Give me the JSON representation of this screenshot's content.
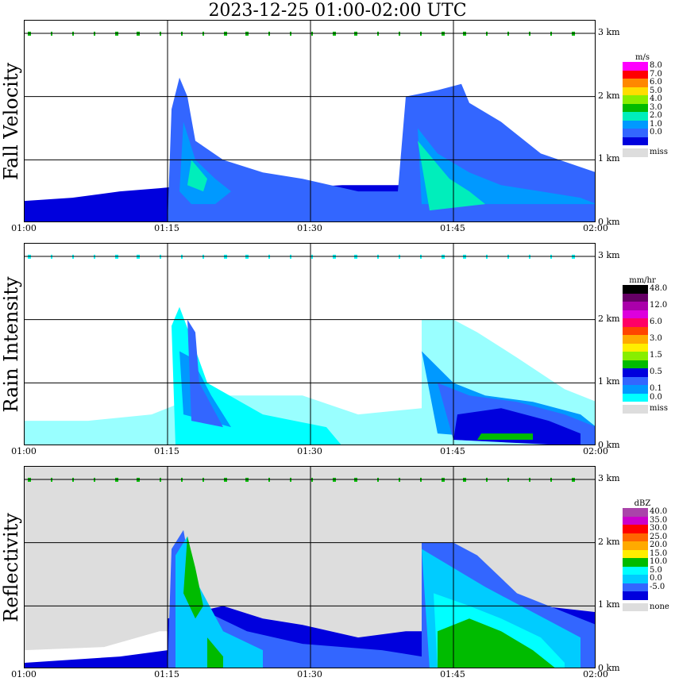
{
  "title": "2023-12-25   01:00-02:00 UTC",
  "chart_data": [
    {
      "type": "heatmap",
      "title": "Fall Velocity",
      "x_ticks": [
        "01:00",
        "01:15",
        "01:30",
        "01:45",
        "02:00"
      ],
      "y_ticks": [
        "0 km",
        "1 km",
        "2 km",
        "3 km"
      ],
      "ylim": [
        0,
        3.2
      ],
      "legend_unit": "m/s",
      "legend": [
        {
          "label": "8.0",
          "color": "#ff00ff"
        },
        {
          "label": "7.0",
          "color": "#ff0000"
        },
        {
          "label": "6.0",
          "color": "#ff8800"
        },
        {
          "label": "5.0",
          "color": "#ffdd00"
        },
        {
          "label": "4.0",
          "color": "#88ee00"
        },
        {
          "label": "3.0",
          "color": "#00bb00"
        },
        {
          "label": "2.0",
          "color": "#00eebb"
        },
        {
          "label": "1.0",
          "color": "#0099ff"
        },
        {
          "label": "0.0",
          "color": "#3366ff"
        },
        {
          "label": "",
          "color": "#0000dd"
        },
        {
          "label": "miss",
          "color": "#dddddd"
        }
      ],
      "base_color": "#ffffff",
      "layers": [
        {
          "color": "#0000dd",
          "pts": [
            [
              0,
              0
            ],
            [
              0,
              0.35
            ],
            [
              60,
              0.4
            ],
            [
              120,
              0.5
            ],
            [
              170,
              0.55
            ],
            [
              210,
              0.6
            ],
            [
              260,
              0.5
            ],
            [
              330,
              0.55
            ],
            [
              400,
              0.6
            ],
            [
              460,
              0.6
            ],
            [
              500,
              0.6
            ],
            [
              540,
              0.5
            ],
            [
              590,
              0.4
            ],
            [
              650,
              0.3
            ],
            [
              720,
              0.3
            ],
            [
              720,
              0
            ]
          ]
        },
        {
          "color": "#3366ff",
          "pts": [
            [
              180,
              0
            ],
            [
              185,
              1.8
            ],
            [
              195,
              2.3
            ],
            [
              205,
              2.0
            ],
            [
              215,
              1.3
            ],
            [
              250,
              1.0
            ],
            [
              300,
              0.8
            ],
            [
              350,
              0.7
            ],
            [
              420,
              0.5
            ],
            [
              470,
              0.5
            ],
            [
              480,
              2.0
            ],
            [
              520,
              2.1
            ],
            [
              550,
              2.2
            ],
            [
              560,
              1.9
            ],
            [
              600,
              1.6
            ],
            [
              650,
              1.1
            ],
            [
              720,
              0.8
            ],
            [
              720,
              0
            ]
          ]
        },
        {
          "color": "#0099ff",
          "pts": [
            [
              195,
              0.5
            ],
            [
              200,
              1.6
            ],
            [
              215,
              1.0
            ],
            [
              240,
              0.7
            ],
            [
              260,
              0.5
            ],
            [
              240,
              0.3
            ],
            [
              210,
              0.3
            ]
          ]
        },
        {
          "color": "#0099ff",
          "pts": [
            [
              500,
              0.3
            ],
            [
              495,
              1.5
            ],
            [
              520,
              1.1
            ],
            [
              560,
              0.8
            ],
            [
              600,
              0.6
            ],
            [
              650,
              0.5
            ],
            [
              700,
              0.4
            ],
            [
              720,
              0.3
            ]
          ]
        },
        {
          "color": "#00eebb",
          "pts": [
            [
              510,
              0.2
            ],
            [
              495,
              1.3
            ],
            [
              515,
              1.0
            ],
            [
              535,
              0.7
            ],
            [
              560,
              0.5
            ],
            [
              580,
              0.3
            ]
          ]
        },
        {
          "color": "#00eebb",
          "pts": [
            [
              205,
              0.6
            ],
            [
              210,
              1.0
            ],
            [
              230,
              0.7
            ],
            [
              225,
              0.5
            ]
          ]
        }
      ],
      "dots_color": "#00bb00"
    },
    {
      "type": "heatmap",
      "title": "Rain Intensity",
      "x_ticks": [
        "01:00",
        "01:15",
        "01:30",
        "01:45",
        "02:00"
      ],
      "y_ticks": [
        "0 km",
        "1 km",
        "2 km",
        "3 km"
      ],
      "ylim": [
        0,
        3.2
      ],
      "legend_unit": "mm/hr",
      "legend": [
        {
          "label": "48.0",
          "color": "#000000"
        },
        {
          "label": "",
          "color": "#660066"
        },
        {
          "label": "12.0",
          "color": "#aa00aa"
        },
        {
          "label": "",
          "color": "#dd00dd"
        },
        {
          "label": "6.0",
          "color": "#ff0066"
        },
        {
          "label": "",
          "color": "#ff4400"
        },
        {
          "label": "3.0",
          "color": "#ffaa00"
        },
        {
          "label": "",
          "color": "#ffee00"
        },
        {
          "label": "1.5",
          "color": "#88ee00"
        },
        {
          "label": "",
          "color": "#00bb00"
        },
        {
          "label": "0.5",
          "color": "#0000dd"
        },
        {
          "label": "",
          "color": "#3366ff"
        },
        {
          "label": "0.1",
          "color": "#0099ff"
        },
        {
          "label": "0.0",
          "color": "#00ffff"
        },
        {
          "label": "miss",
          "color": "#dddddd"
        }
      ],
      "base_color": "#ffffff",
      "layers": [
        {
          "color": "#99ffff",
          "pts": [
            [
              0,
              0
            ],
            [
              0,
              0.4
            ],
            [
              80,
              0.4
            ],
            [
              160,
              0.5
            ],
            [
              220,
              0.8
            ],
            [
              280,
              0.8
            ],
            [
              350,
              0.8
            ],
            [
              420,
              0.5
            ],
            [
              500,
              0.6
            ],
            [
              500,
              2.0
            ],
            [
              540,
              2.0
            ],
            [
              570,
              1.8
            ],
            [
              620,
              1.4
            ],
            [
              680,
              0.9
            ],
            [
              720,
              0.7
            ],
            [
              720,
              0
            ]
          ]
        },
        {
          "color": "#00ffff",
          "pts": [
            [
              190,
              0
            ],
            [
              185,
              1.9
            ],
            [
              195,
              2.2
            ],
            [
              210,
              1.7
            ],
            [
              230,
              1.0
            ],
            [
              300,
              0.5
            ],
            [
              380,
              0.3
            ],
            [
              400,
              0
            ]
          ]
        },
        {
          "color": "#0099ff",
          "pts": [
            [
              200,
              0.5
            ],
            [
              195,
              1.5
            ],
            [
              210,
              1.4
            ],
            [
              235,
              0.8
            ],
            [
              260,
              0.3
            ]
          ]
        },
        {
          "color": "#0099ff",
          "pts": [
            [
              520,
              0.2
            ],
            [
              500,
              1.5
            ],
            [
              540,
              1.0
            ],
            [
              580,
              0.8
            ],
            [
              640,
              0.7
            ],
            [
              700,
              0.5
            ],
            [
              720,
              0.3
            ],
            [
              720,
              0
            ]
          ]
        },
        {
          "color": "#3366ff",
          "pts": [
            [
              210,
              0.4
            ],
            [
              205,
              2.0
            ],
            [
              215,
              1.8
            ],
            [
              220,
              1.0
            ],
            [
              250,
              0.3
            ]
          ]
        },
        {
          "color": "#3366ff",
          "pts": [
            [
              540,
              0.1
            ],
            [
              520,
              1.0
            ],
            [
              560,
              0.8
            ],
            [
              620,
              0.7
            ],
            [
              680,
              0.5
            ],
            [
              720,
              0.3
            ],
            [
              720,
              0
            ]
          ]
        },
        {
          "color": "#0000dd",
          "pts": [
            [
              540,
              0.1
            ],
            [
              545,
              0.5
            ],
            [
              600,
              0.6
            ],
            [
              660,
              0.4
            ],
            [
              700,
              0.2
            ],
            [
              700,
              0
            ]
          ]
        },
        {
          "color": "#00bb00",
          "pts": [
            [
              570,
              0.1
            ],
            [
              575,
              0.2
            ],
            [
              640,
              0.2
            ],
            [
              640,
              0.1
            ]
          ]
        }
      ],
      "dots_color": "#00ffff"
    },
    {
      "type": "heatmap",
      "title": "Reflectivity",
      "x_ticks": [
        "01:00",
        "01:15",
        "01:30",
        "01:45",
        "02:00"
      ],
      "y_ticks": [
        "0 km",
        "1 km",
        "2 km",
        "3 km"
      ],
      "ylim": [
        0,
        3.2
      ],
      "legend_unit": "dBZ",
      "legend": [
        {
          "label": "40.0",
          "color": "#aa44aa"
        },
        {
          "label": "35.0",
          "color": "#cc00cc"
        },
        {
          "label": "30.0",
          "color": "#ff0000"
        },
        {
          "label": "25.0",
          "color": "#ff6600"
        },
        {
          "label": "20.0",
          "color": "#ffaa00"
        },
        {
          "label": "15.0",
          "color": "#ffee00"
        },
        {
          "label": "10.0",
          "color": "#00bb00"
        },
        {
          "label": "5.0",
          "color": "#00ffff"
        },
        {
          "label": "0.0",
          "color": "#00ccff"
        },
        {
          "label": "-5.0",
          "color": "#3366ff"
        },
        {
          "label": "",
          "color": "#0000dd"
        },
        {
          "label": "none",
          "color": "#dddddd"
        }
      ],
      "base_color": "#dddddd",
      "layers": [
        {
          "color": "#ffffff",
          "pts": [
            [
              0,
              0
            ],
            [
              0,
              0.3
            ],
            [
              100,
              0.35
            ],
            [
              170,
              0.6
            ],
            [
              240,
              0.6
            ],
            [
              320,
              0.5
            ],
            [
              400,
              0.4
            ],
            [
              480,
              0.5
            ],
            [
              720,
              0.5
            ],
            [
              720,
              0
            ]
          ]
        },
        {
          "color": "#0000dd",
          "pts": [
            [
              0,
              0
            ],
            [
              0,
              0.1
            ],
            [
              120,
              0.2
            ],
            [
              180,
              0.3
            ],
            [
              180,
              0.8
            ],
            [
              250,
              1.0
            ],
            [
              300,
              0.8
            ],
            [
              350,
              0.7
            ],
            [
              420,
              0.5
            ],
            [
              480,
              0.6
            ],
            [
              520,
              0.6
            ],
            [
              600,
              0.8
            ],
            [
              650,
              1.0
            ],
            [
              720,
              0.9
            ],
            [
              720,
              0
            ]
          ]
        },
        {
          "color": "#3366ff",
          "pts": [
            [
              180,
              0
            ],
            [
              185,
              1.9
            ],
            [
              200,
              2.2
            ],
            [
              210,
              1.5
            ],
            [
              230,
              0.9
            ],
            [
              280,
              0.6
            ],
            [
              350,
              0.4
            ],
            [
              450,
              0.3
            ],
            [
              500,
              0.2
            ],
            [
              500,
              2.0
            ],
            [
              540,
              2.0
            ],
            [
              570,
              1.8
            ],
            [
              620,
              1.2
            ],
            [
              700,
              0.8
            ],
            [
              720,
              0.7
            ],
            [
              720,
              0
            ]
          ]
        },
        {
          "color": "#00ccff",
          "pts": [
            [
              190,
              0
            ],
            [
              190,
              1.8
            ],
            [
              205,
              2.1
            ],
            [
              220,
              1.3
            ],
            [
              250,
              0.6
            ],
            [
              300,
              0.3
            ],
            [
              300,
              0
            ]
          ]
        },
        {
          "color": "#00ccff",
          "pts": [
            [
              510,
              0
            ],
            [
              500,
              1.9
            ],
            [
              540,
              1.6
            ],
            [
              580,
              1.3
            ],
            [
              640,
              0.9
            ],
            [
              700,
              0.5
            ],
            [
              700,
              0
            ]
          ]
        },
        {
          "color": "#00ffff",
          "pts": [
            [
              520,
              0
            ],
            [
              515,
              1.2
            ],
            [
              560,
              1.0
            ],
            [
              600,
              0.8
            ],
            [
              650,
              0.5
            ],
            [
              680,
              0.1
            ],
            [
              680,
              0
            ]
          ]
        },
        {
          "color": "#00bb00",
          "pts": [
            [
              200,
              1.2
            ],
            [
              205,
              2.1
            ],
            [
              215,
              1.6
            ],
            [
              225,
              1.0
            ],
            [
              215,
              0.8
            ]
          ]
        },
        {
          "color": "#00bb00",
          "pts": [
            [
              520,
              0.0
            ],
            [
              520,
              0.6
            ],
            [
              560,
              0.8
            ],
            [
              600,
              0.6
            ],
            [
              640,
              0.3
            ],
            [
              670,
              0.0
            ]
          ]
        },
        {
          "color": "#00bb00",
          "pts": [
            [
              230,
              0
            ],
            [
              230,
              0.5
            ],
            [
              250,
              0.2
            ],
            [
              250,
              0
            ]
          ]
        }
      ],
      "dots_color": "#00bb00"
    }
  ]
}
